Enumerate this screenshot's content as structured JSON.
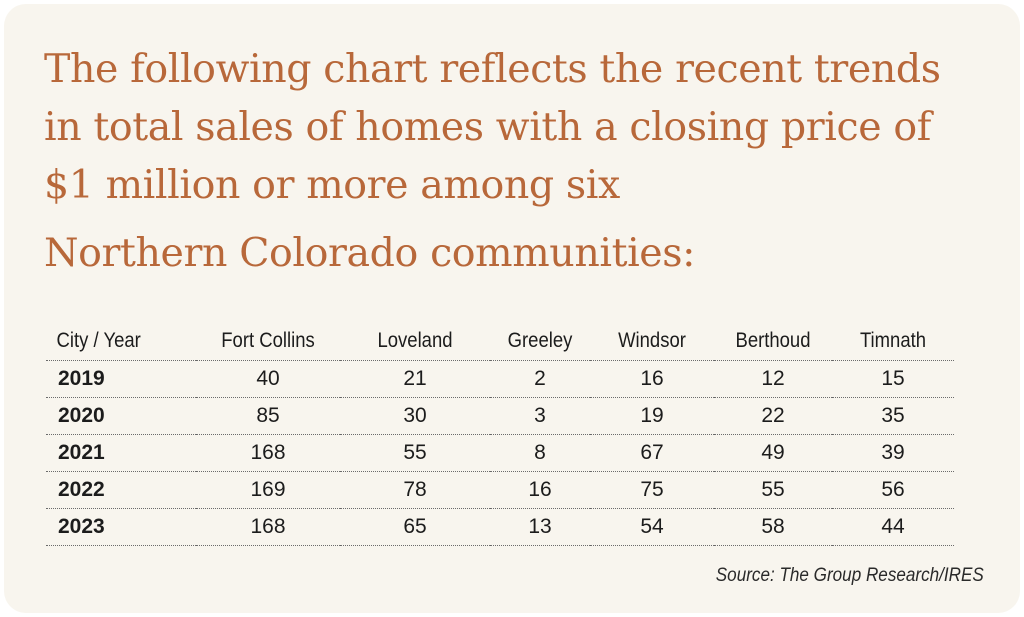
{
  "colors": {
    "title": "#b8683a",
    "card_background": "#f8f5ee",
    "text": "#1c1c1c",
    "rule": "#6b6b6b"
  },
  "title_lines": [
    "The following chart reflects the recent trends",
    "in total sales of homes with a closing price of",
    "$1 million or more among six",
    "Northern Colorado communities:"
  ],
  "source": "Source: The Group Research/IRES",
  "chart_data": {
    "type": "table",
    "header_label": "City / Year",
    "columns": [
      "Fort Collins",
      "Loveland",
      "Greeley",
      "Windsor",
      "Berthoud",
      "Timnath"
    ],
    "rows": [
      {
        "year": "2019",
        "values": [
          "40",
          "21",
          "2",
          "16",
          "12",
          "15"
        ]
      },
      {
        "year": "2020",
        "values": [
          "85",
          "30",
          "3",
          "19",
          "22",
          "35"
        ]
      },
      {
        "year": "2021",
        "values": [
          "168",
          "55",
          "8",
          "67",
          "49",
          "39"
        ]
      },
      {
        "year": "2022",
        "values": [
          "169",
          "78",
          "16",
          "75",
          "55",
          "56"
        ]
      },
      {
        "year": "2023",
        "values": [
          "168",
          "65",
          "13",
          "54",
          "58",
          "44"
        ]
      }
    ]
  }
}
